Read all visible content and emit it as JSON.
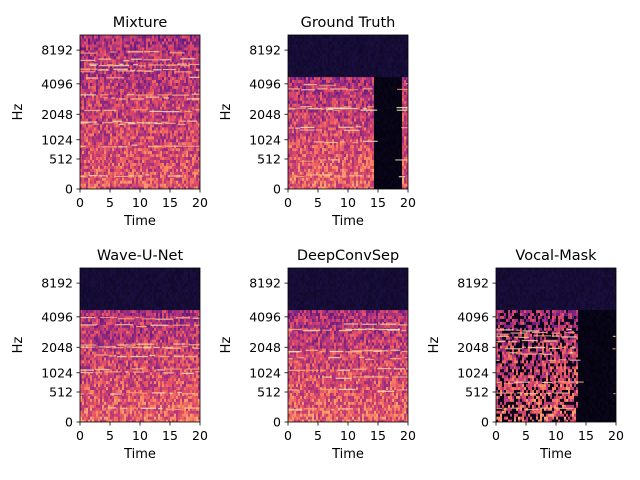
{
  "figure": {
    "background": "#ffffff"
  },
  "chart_data": [
    {
      "type": "heatmap",
      "title": "Mixture",
      "xlabel": "Time",
      "ylabel": "Hz",
      "x_ticks": [
        "0",
        "5",
        "10",
        "15",
        "20"
      ],
      "y_ticks": [
        "0",
        "512",
        "1024",
        "2048",
        "4096",
        "8192"
      ],
      "xlim": [
        0,
        20
      ],
      "y_scale": "mel-like",
      "colormap": "magma",
      "content_top_hz": 11025,
      "energy": "dense broadband energy across full time range"
    },
    {
      "type": "heatmap",
      "title": "Ground Truth",
      "xlabel": "Time",
      "ylabel": "Hz",
      "x_ticks": [
        "0",
        "5",
        "10",
        "15",
        "20"
      ],
      "y_ticks": [
        "0",
        "512",
        "1024",
        "2048",
        "4096",
        "8192"
      ],
      "xlim": [
        0,
        20
      ],
      "y_scale": "mel-like",
      "colormap": "magma",
      "content_top_hz": 4600,
      "silent_segments": [
        [
          14.5,
          18.9
        ]
      ],
      "energy": "harmonic vocal content below ~4.6 kHz with silent gap"
    },
    {
      "type": "heatmap",
      "title": "Wave-U-Net",
      "xlabel": "Time",
      "ylabel": "Hz",
      "x_ticks": [
        "0",
        "5",
        "10",
        "15",
        "20"
      ],
      "y_ticks": [
        "0",
        "512",
        "1024",
        "2048",
        "4096",
        "8192"
      ],
      "xlim": [
        0,
        20
      ],
      "y_scale": "mel-like",
      "colormap": "magma",
      "content_top_hz": 4600,
      "energy": "vocal estimate with leakage in gap region"
    },
    {
      "type": "heatmap",
      "title": "DeepConvSep",
      "xlabel": "Time",
      "ylabel": "Hz",
      "x_ticks": [
        "0",
        "5",
        "10",
        "15",
        "20"
      ],
      "y_ticks": [
        "0",
        "512",
        "1024",
        "2048",
        "4096",
        "8192"
      ],
      "xlim": [
        0,
        20
      ],
      "y_scale": "mel-like",
      "colormap": "magma",
      "content_top_hz": 4600,
      "energy": "vocal estimate with moderate leakage"
    },
    {
      "type": "heatmap",
      "title": "Vocal-Mask",
      "xlabel": "Time",
      "ylabel": "Hz",
      "x_ticks": [
        "0",
        "5",
        "10",
        "15",
        "20"
      ],
      "y_ticks": [
        "0",
        "512",
        "1024",
        "2048",
        "4096",
        "8192"
      ],
      "xlim": [
        0,
        20
      ],
      "y_scale": "mel-like",
      "colormap": "magma",
      "content_top_hz": 4600,
      "silent_segments": [
        [
          13.6,
          20
        ]
      ],
      "energy": "sparse masked vocal estimate, mostly silent after 13.6 s"
    }
  ]
}
